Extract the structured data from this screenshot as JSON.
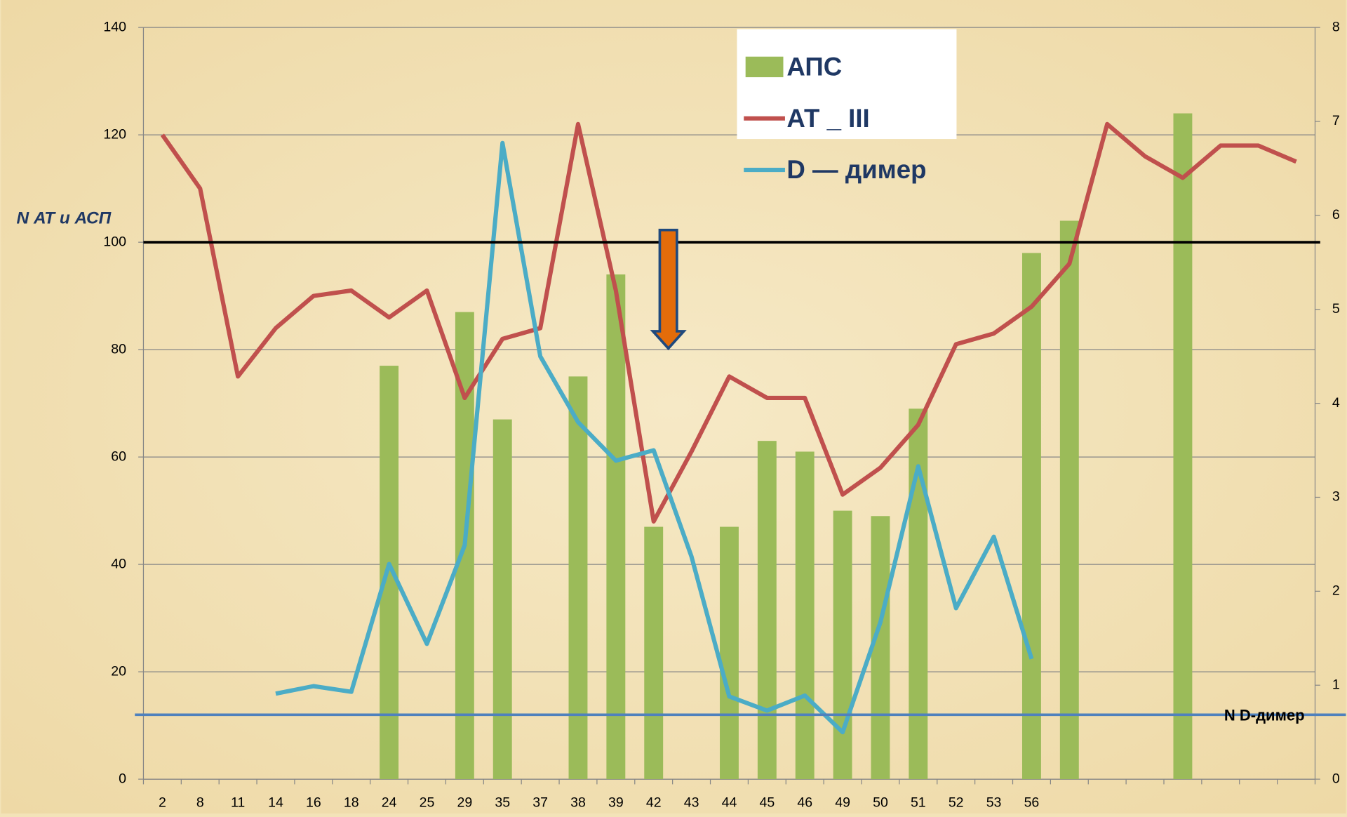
{
  "chart_data": {
    "type": "bar_line",
    "categories": [
      "2",
      "8",
      "11",
      "14",
      "16",
      "18",
      "24",
      "25",
      "29",
      "35",
      "37",
      "38",
      "39",
      "42",
      "43",
      "44",
      "45",
      "46",
      "49",
      "50",
      "51",
      "52",
      "53",
      "56",
      null,
      null,
      null,
      null,
      null,
      null,
      null
    ],
    "series": [
      {
        "name": "АПС",
        "type": "bar",
        "color": "#9bbb59",
        "values": [
          null,
          null,
          null,
          null,
          null,
          null,
          77,
          null,
          87,
          67,
          null,
          75,
          94,
          47,
          null,
          47,
          63,
          61,
          50,
          49,
          69,
          null,
          null,
          98,
          104,
          null,
          null,
          124,
          null,
          null,
          null
        ]
      },
      {
        "name": "АТ _ III",
        "type": "line",
        "color": "#c0504d",
        "values": [
          120,
          110,
          75,
          84,
          90,
          91,
          86,
          91,
          71,
          82,
          84,
          122,
          91,
          48,
          61,
          75,
          71,
          71,
          53,
          58,
          66,
          81,
          83,
          88,
          96,
          122,
          116,
          112,
          118,
          118,
          115
        ]
      },
      {
        "name": "D — димер",
        "type": "line",
        "axis": "y2",
        "color": "#4bacc6",
        "values": [
          null,
          null,
          null,
          0.91,
          0.99,
          0.93,
          2.29,
          1.44,
          2.49,
          6.77,
          4.5,
          3.8,
          3.39,
          3.5,
          2.37,
          0.88,
          0.73,
          0.89,
          0.5,
          1.67,
          3.33,
          1.82,
          2.58,
          1.28,
          null,
          null,
          null,
          null,
          null,
          null,
          null
        ]
      }
    ],
    "ylim": [
      0,
      140
    ],
    "yticks": [
      0,
      20,
      40,
      60,
      80,
      100,
      120,
      140
    ],
    "y2lim": [
      0,
      8
    ],
    "y2ticks": [
      0,
      1,
      2,
      3,
      4,
      5,
      6,
      7,
      8
    ],
    "grid": true,
    "reference_lines": [
      {
        "value": 100,
        "label": "N  АТ и АСП",
        "color": "#000000"
      },
      {
        "value": 12,
        "label": "N   D-димер",
        "color": "#4f81bd"
      }
    ],
    "legend": "top-right"
  }
}
